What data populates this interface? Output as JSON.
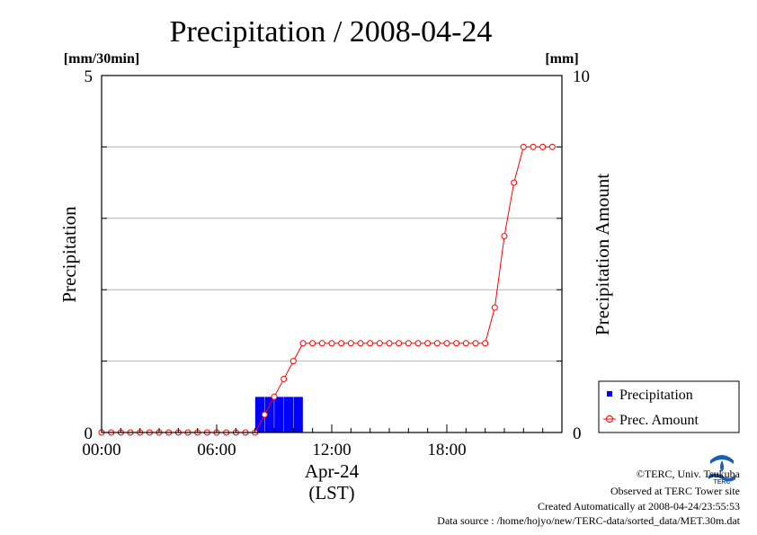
{
  "chart_data": {
    "type": "bar",
    "title": "Precipitation / 2008-04-24",
    "left_unit": "[mm/30min]",
    "right_unit": "[mm]",
    "ylabel": "Precipitation",
    "ylabel_right": "Precipitation Amount",
    "xlabel": "Apr-24",
    "xlabel_sub": "(LST)",
    "ylim": [
      0,
      5
    ],
    "ylim_right": [
      0,
      10
    ],
    "y_tick_labels": [
      {
        "value": 0,
        "label": "0"
      },
      {
        "value": 5,
        "label": "5"
      }
    ],
    "y_right_tick_labels": [
      {
        "value": 0,
        "label": "0"
      },
      {
        "value": 10,
        "label": "10"
      }
    ],
    "x_tick_labels": [
      {
        "hour": 0,
        "label": "00:00"
      },
      {
        "hour": 6,
        "label": "06:00"
      },
      {
        "hour": 12,
        "label": "12:00"
      },
      {
        "hour": 18,
        "label": "18:00"
      }
    ],
    "xlim_hours": [
      0,
      24
    ],
    "grid": true,
    "legend_position": "bottom-right",
    "series": [
      {
        "name": "Precipitation",
        "type": "bar",
        "color": "#0000ff",
        "axis": "left",
        "unit": "mm/30min",
        "x_hours": [
          0,
          0.5,
          1,
          1.5,
          2,
          2.5,
          3,
          3.5,
          4,
          4.5,
          5,
          5.5,
          6,
          6.5,
          7,
          7.5,
          8,
          8.5,
          9,
          9.5,
          10,
          10.5,
          11,
          11.5,
          12,
          12.5,
          13,
          13.5,
          14,
          14.5,
          15,
          15.5,
          16,
          16.5,
          17,
          17.5,
          18,
          18.5,
          19,
          19.5,
          20,
          20.5,
          21,
          21.5,
          22,
          22.5,
          23,
          23.5
        ],
        "values": [
          0,
          0,
          0,
          0,
          0,
          0,
          0,
          0,
          0,
          0,
          0,
          0,
          0,
          0,
          0,
          0,
          0.5,
          0.5,
          0.5,
          0.5,
          0.5,
          0,
          0,
          0,
          0,
          0,
          0,
          0,
          0,
          0,
          0,
          0,
          0,
          0,
          0,
          0,
          0,
          0,
          0,
          0,
          0,
          0,
          0,
          0,
          0,
          0,
          0,
          0
        ]
      },
      {
        "name": "Prec. Amount",
        "type": "line",
        "color": "#ff0000",
        "axis": "right",
        "unit": "mm",
        "x_hours": [
          0,
          0.5,
          1,
          1.5,
          2,
          2.5,
          3,
          3.5,
          4,
          4.5,
          5,
          5.5,
          6,
          6.5,
          7,
          7.5,
          8,
          8.5,
          9,
          9.5,
          10,
          10.5,
          11,
          11.5,
          12,
          12.5,
          13,
          13.5,
          14,
          14.5,
          15,
          15.5,
          16,
          16.5,
          17,
          17.5,
          18,
          18.5,
          19,
          19.5,
          20,
          20.5,
          21,
          21.5,
          22,
          22.5,
          23,
          23.5
        ],
        "values": [
          0,
          0,
          0,
          0,
          0,
          0,
          0,
          0,
          0,
          0,
          0,
          0,
          0,
          0,
          0,
          0,
          0,
          0.5,
          1.0,
          1.5,
          2.0,
          2.5,
          2.5,
          2.5,
          2.5,
          2.5,
          2.5,
          2.5,
          2.5,
          2.5,
          2.5,
          2.5,
          2.5,
          2.5,
          2.5,
          2.5,
          2.5,
          2.5,
          2.5,
          2.5,
          2.5,
          3.5,
          5.5,
          7.0,
          8.0,
          8.0,
          8.0,
          8.0
        ]
      }
    ],
    "legend": [
      {
        "label": "Precipitation",
        "color": "#0000ff",
        "marker": "square"
      },
      {
        "label": "Prec. Amount",
        "color": "#ff0000",
        "marker": "circle-line"
      }
    ]
  },
  "footer": {
    "copyright": "©TERC, Univ. Tsukuba",
    "observed": "Observed at TERC Tower site",
    "created": "Created Automatically at 2008-04-24/23:55:53",
    "source": "Data source : /home/hojyo/new/TERC-data/sorted_data/MET.30m.dat"
  },
  "logo": {
    "text": "TERC",
    "color": "#1a5fb4"
  }
}
